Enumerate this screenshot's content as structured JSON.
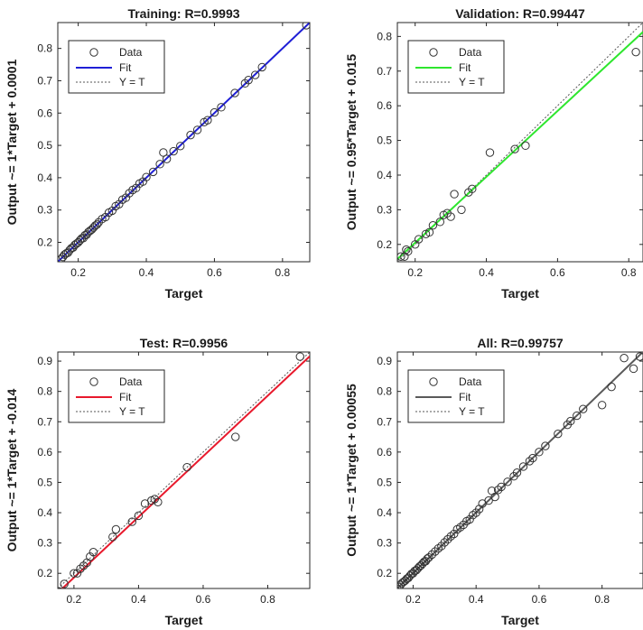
{
  "chart_data": [
    {
      "type": "scatter",
      "title": "Training: R=0.9993",
      "xlabel": "Target",
      "ylabel": "Output ~= 1*Target + 0.0001",
      "xlim": [
        0.14,
        0.88
      ],
      "ylim": [
        0.14,
        0.88
      ],
      "xticks": [
        "0.2",
        "0.4",
        "0.6",
        "0.8"
      ],
      "yticks": [
        "0.2",
        "0.3",
        "0.4",
        "0.5",
        "0.6",
        "0.7",
        "0.8"
      ],
      "fit_color": "#1f1fd6",
      "marker_color": "#333333",
      "fit": {
        "slope": 1.0,
        "intercept": 0.0001
      },
      "legend": {
        "data": "Data",
        "fit": "Fit",
        "yt": "Y = T"
      },
      "x": [
        0.15,
        0.155,
        0.16,
        0.165,
        0.17,
        0.175,
        0.18,
        0.185,
        0.19,
        0.195,
        0.2,
        0.205,
        0.21,
        0.215,
        0.22,
        0.225,
        0.23,
        0.235,
        0.24,
        0.245,
        0.25,
        0.255,
        0.26,
        0.27,
        0.28,
        0.29,
        0.3,
        0.31,
        0.32,
        0.33,
        0.34,
        0.35,
        0.36,
        0.37,
        0.38,
        0.39,
        0.4,
        0.42,
        0.44,
        0.45,
        0.46,
        0.48,
        0.5,
        0.53,
        0.55,
        0.57,
        0.58,
        0.6,
        0.62,
        0.66,
        0.69,
        0.7,
        0.72,
        0.74,
        0.87
      ],
      "y": [
        0.148,
        0.155,
        0.162,
        0.166,
        0.168,
        0.176,
        0.182,
        0.184,
        0.192,
        0.196,
        0.2,
        0.206,
        0.212,
        0.213,
        0.222,
        0.224,
        0.232,
        0.236,
        0.24,
        0.246,
        0.252,
        0.255,
        0.262,
        0.272,
        0.278,
        0.292,
        0.298,
        0.312,
        0.318,
        0.332,
        0.338,
        0.352,
        0.362,
        0.368,
        0.382,
        0.388,
        0.402,
        0.418,
        0.442,
        0.478,
        0.458,
        0.482,
        0.498,
        0.532,
        0.548,
        0.572,
        0.578,
        0.602,
        0.618,
        0.662,
        0.692,
        0.702,
        0.718,
        0.742,
        0.872
      ]
    },
    {
      "type": "scatter",
      "title": "Validation: R=0.99447",
      "xlabel": "Target",
      "ylabel": "Output ~= 0.95*Target + 0.015",
      "xlim": [
        0.15,
        0.84
      ],
      "ylim": [
        0.15,
        0.84
      ],
      "xticks": [
        "0.2",
        "0.4",
        "0.6",
        "0.8"
      ],
      "yticks": [
        "0.2",
        "0.3",
        "0.4",
        "0.5",
        "0.6",
        "0.7",
        "0.8"
      ],
      "fit_color": "#2ee62e",
      "marker_color": "#333333",
      "fit": {
        "slope": 0.95,
        "intercept": 0.015
      },
      "legend": {
        "data": "Data",
        "fit": "Fit",
        "yt": "Y = T"
      },
      "x": [
        0.16,
        0.17,
        0.175,
        0.18,
        0.2,
        0.21,
        0.23,
        0.24,
        0.25,
        0.27,
        0.28,
        0.29,
        0.3,
        0.31,
        0.33,
        0.35,
        0.36,
        0.41,
        0.48,
        0.51,
        0.82
      ],
      "y": [
        0.165,
        0.165,
        0.185,
        0.18,
        0.2,
        0.215,
        0.23,
        0.235,
        0.255,
        0.265,
        0.285,
        0.29,
        0.28,
        0.345,
        0.3,
        0.35,
        0.36,
        0.465,
        0.475,
        0.485,
        0.755
      ]
    },
    {
      "type": "scatter",
      "title": "Test: R=0.9956",
      "xlabel": "Target",
      "ylabel": "Output ~= 1*Target + -0.014",
      "xlim": [
        0.15,
        0.93
      ],
      "ylim": [
        0.15,
        0.93
      ],
      "xticks": [
        "0.2",
        "0.4",
        "0.6",
        "0.8"
      ],
      "yticks": [
        "0.2",
        "0.3",
        "0.4",
        "0.5",
        "0.6",
        "0.7",
        "0.8",
        "0.9"
      ],
      "fit_color": "#e8192c",
      "marker_color": "#333333",
      "fit": {
        "slope": 1.0,
        "intercept": -0.014
      },
      "legend": {
        "data": "Data",
        "fit": "Fit",
        "yt": "Y = T"
      },
      "x": [
        0.155,
        0.17,
        0.2,
        0.21,
        0.22,
        0.23,
        0.24,
        0.25,
        0.26,
        0.32,
        0.33,
        0.38,
        0.4,
        0.42,
        0.44,
        0.45,
        0.46,
        0.55,
        0.7,
        0.9
      ],
      "y": [
        0.14,
        0.165,
        0.2,
        0.2,
        0.215,
        0.225,
        0.235,
        0.255,
        0.27,
        0.32,
        0.345,
        0.37,
        0.39,
        0.43,
        0.44,
        0.445,
        0.435,
        0.55,
        0.65,
        0.915
      ]
    },
    {
      "type": "scatter",
      "title": "All: R=0.99757",
      "xlabel": "Target",
      "ylabel": "Output ~= 1*Target + 0.00055",
      "xlim": [
        0.15,
        0.93
      ],
      "ylim": [
        0.15,
        0.93
      ],
      "xticks": [
        "0.2",
        "0.4",
        "0.6",
        "0.8"
      ],
      "yticks": [
        "0.2",
        "0.3",
        "0.4",
        "0.5",
        "0.6",
        "0.7",
        "0.8",
        "0.9"
      ],
      "fit_color": "#5a5a5a",
      "marker_color": "#333333",
      "fit": {
        "slope": 1.0,
        "intercept": 0.00055
      },
      "legend": {
        "data": "Data",
        "fit": "Fit",
        "yt": "Y = T"
      },
      "x": [
        0.15,
        0.155,
        0.16,
        0.165,
        0.17,
        0.175,
        0.18,
        0.185,
        0.19,
        0.195,
        0.2,
        0.205,
        0.21,
        0.215,
        0.22,
        0.225,
        0.23,
        0.235,
        0.24,
        0.245,
        0.25,
        0.26,
        0.27,
        0.28,
        0.29,
        0.3,
        0.31,
        0.32,
        0.33,
        0.34,
        0.35,
        0.36,
        0.37,
        0.38,
        0.39,
        0.4,
        0.41,
        0.42,
        0.44,
        0.45,
        0.46,
        0.47,
        0.48,
        0.5,
        0.52,
        0.53,
        0.55,
        0.57,
        0.58,
        0.6,
        0.62,
        0.66,
        0.69,
        0.7,
        0.72,
        0.74,
        0.8,
        0.83,
        0.87,
        0.9,
        0.92
      ],
      "y": [
        0.148,
        0.155,
        0.162,
        0.168,
        0.172,
        0.176,
        0.182,
        0.185,
        0.192,
        0.198,
        0.2,
        0.208,
        0.21,
        0.216,
        0.222,
        0.226,
        0.232,
        0.238,
        0.24,
        0.248,
        0.252,
        0.262,
        0.272,
        0.282,
        0.29,
        0.302,
        0.312,
        0.322,
        0.33,
        0.345,
        0.352,
        0.36,
        0.372,
        0.378,
        0.392,
        0.4,
        0.412,
        0.43,
        0.44,
        0.472,
        0.452,
        0.475,
        0.485,
        0.502,
        0.52,
        0.532,
        0.552,
        0.57,
        0.58,
        0.6,
        0.62,
        0.66,
        0.69,
        0.702,
        0.72,
        0.742,
        0.755,
        0.815,
        0.91,
        0.875,
        0.915
      ]
    }
  ]
}
